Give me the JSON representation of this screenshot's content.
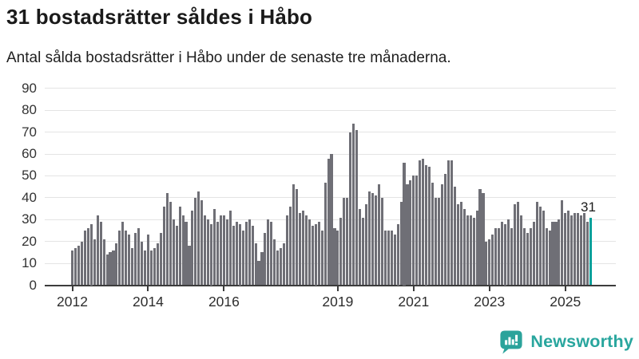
{
  "header": {
    "title": "31 bostadsrätter såldes i Håbo",
    "subtitle": "Antal sålda bostadsrätter i Håbo under de senaste tre månaderna."
  },
  "chart_data": {
    "type": "bar",
    "title": "31 bostadsrätter såldes i Håbo",
    "subtitle": "Antal sålda bostadsrätter i Håbo under de senaste tre månaderna.",
    "x_unit": "month",
    "x_start": "2012-01",
    "x_end": "2025-09",
    "ylim": [
      0,
      90
    ],
    "grid": "horizontal",
    "y_ticks": [
      0,
      10,
      20,
      30,
      40,
      50,
      60,
      70,
      80,
      90
    ],
    "x_tick_years": [
      2012,
      2014,
      2016,
      2019,
      2021,
      2023,
      2025
    ],
    "bar_color": "#6f6f76",
    "highlight_color": "#00a09a",
    "highlight_index": 164,
    "annotation_label": "31",
    "annotation_value": 31,
    "values": [
      16,
      17,
      18,
      20,
      25,
      26,
      28,
      21,
      32,
      29,
      21,
      14,
      15,
      16,
      19,
      25,
      29,
      25,
      23,
      17,
      24,
      26,
      20,
      16,
      23,
      16,
      17,
      19,
      24,
      36,
      42,
      38,
      30,
      27,
      36,
      32,
      29,
      18,
      34,
      40,
      43,
      39,
      32,
      30,
      28,
      35,
      29,
      32,
      32,
      30,
      34,
      27,
      29,
      28,
      25,
      29,
      30,
      27,
      19,
      11,
      15,
      24,
      30,
      29,
      21,
      16,
      17,
      19,
      32,
      36,
      46,
      44,
      33,
      34,
      32,
      30,
      27,
      28,
      29,
      25,
      47,
      58,
      60,
      26,
      25,
      31,
      40,
      40,
      70,
      74,
      71,
      35,
      31,
      37,
      43,
      42,
      41,
      46,
      40,
      25,
      25,
      25,
      23,
      28,
      38,
      56,
      46,
      48,
      50,
      50,
      57,
      58,
      55,
      54,
      47,
      40,
      40,
      46,
      51,
      57,
      57,
      45,
      37,
      38,
      35,
      32,
      32,
      31,
      34,
      44,
      42,
      20,
      21,
      23,
      26,
      26,
      29,
      28,
      30,
      26,
      37,
      38,
      32,
      26,
      24,
      26,
      29,
      38,
      36,
      34,
      26,
      25,
      29,
      29,
      30,
      39,
      33,
      34,
      32,
      33,
      33,
      32,
      33,
      29,
      31
    ]
  },
  "footer": {
    "brand": "Newsworthy",
    "brand_color": "#29a69e",
    "icon_color": "#2ba39b"
  }
}
